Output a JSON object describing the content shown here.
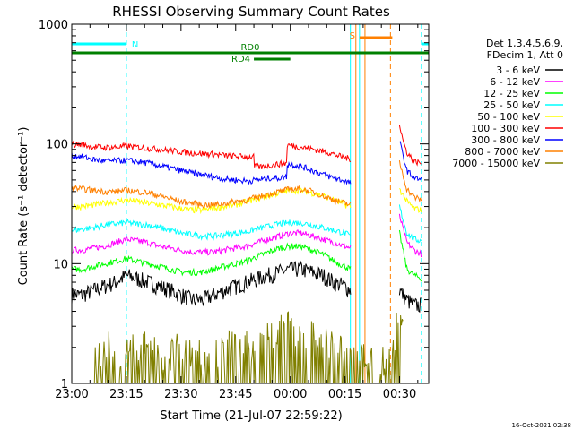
{
  "chart_data": {
    "type": "line",
    "title": "RHESSI Observing Summary Count Rates",
    "xlabel": "Start Time (21-Jul-07 22:59:22)",
    "ylabel": "Count Rate (s⁻¹ detector⁻¹)",
    "x_unit": "minutes from 21-Jul-07 23:00",
    "xlim": [
      0,
      98
    ],
    "ylim": [
      1,
      1000
    ],
    "yscale": "log",
    "grid": false,
    "legend_position": "right",
    "x_ticks": [
      {
        "x": 0,
        "label": "23:00"
      },
      {
        "x": 15,
        "label": "23:15"
      },
      {
        "x": 30,
        "label": "23:30"
      },
      {
        "x": 45,
        "label": "23:45"
      },
      {
        "x": 60,
        "label": "00:00"
      },
      {
        "x": 75,
        "label": "00:15"
      },
      {
        "x": 90,
        "label": "00:30"
      }
    ],
    "y_ticks": [
      {
        "y": 1,
        "label": "1"
      },
      {
        "y": 10,
        "label": "10"
      },
      {
        "y": 100,
        "label": "100"
      },
      {
        "y": 1000,
        "label": "1000"
      }
    ],
    "legend_header": [
      "Det 1,3,4,5,6,9,",
      "FDecim 1, Att 0"
    ],
    "series": [
      {
        "name": "3 - 6 keV",
        "color": "#000000",
        "x": [
          0,
          3,
          6,
          9,
          12,
          15,
          18,
          21,
          24,
          27,
          30,
          33,
          36,
          39,
          42,
          45,
          48,
          51,
          54,
          57,
          60,
          63,
          66,
          69,
          72,
          75,
          76.5,
          90,
          92,
          94,
          96
        ],
        "y": [
          5.5,
          5.5,
          6,
          6.5,
          7,
          8,
          7.5,
          7,
          6.5,
          6,
          5.5,
          5,
          5,
          5.5,
          6,
          6.5,
          7,
          7.5,
          8,
          8.5,
          9,
          9,
          8.5,
          8,
          7,
          6.5,
          6,
          6,
          5,
          4.5,
          4.5
        ]
      },
      {
        "name": "6 - 12 keV",
        "color": "#ff00ff",
        "x": [
          0,
          3,
          6,
          9,
          12,
          15,
          18,
          21,
          24,
          27,
          30,
          33,
          36,
          39,
          42,
          45,
          48,
          51,
          54,
          57,
          60,
          63,
          66,
          69,
          72,
          75,
          76.5,
          90,
          92,
          94,
          96
        ],
        "y": [
          13,
          13,
          13.5,
          14,
          15,
          16,
          15.5,
          15,
          14,
          13.5,
          13,
          12.5,
          12.5,
          12.5,
          13,
          13.5,
          14,
          15,
          16,
          17,
          18,
          18,
          17,
          16,
          15,
          14,
          13.5,
          25,
          15,
          13,
          12
        ]
      },
      {
        "name": "12 - 25 keV",
        "color": "#00ff00",
        "x": [
          0,
          3,
          6,
          9,
          12,
          15,
          18,
          21,
          24,
          27,
          30,
          33,
          36,
          39,
          42,
          45,
          48,
          51,
          54,
          57,
          60,
          63,
          66,
          69,
          72,
          75,
          76.5,
          90,
          92,
          94,
          96
        ],
        "y": [
          9,
          9,
          9.5,
          10,
          10.5,
          11,
          10.5,
          10,
          9.5,
          9,
          8.5,
          8.5,
          8.5,
          9,
          9.5,
          10,
          10.5,
          11.5,
          12.5,
          13.5,
          14,
          14,
          13,
          12,
          10.5,
          9.5,
          9,
          18,
          9,
          8,
          7.5
        ]
      },
      {
        "name": "25 - 50 keV",
        "color": "#00ffff",
        "x": [
          0,
          3,
          6,
          9,
          12,
          15,
          18,
          21,
          24,
          27,
          30,
          33,
          36,
          39,
          42,
          45,
          48,
          51,
          54,
          57,
          60,
          63,
          66,
          69,
          72,
          75,
          76.5,
          90,
          92,
          94,
          96
        ],
        "y": [
          19,
          19.5,
          20,
          21,
          21.5,
          22,
          21.5,
          21,
          20,
          19,
          18,
          17.5,
          17,
          17,
          17.5,
          18,
          18.5,
          19.5,
          20.5,
          21.5,
          22,
          22,
          21,
          20,
          19,
          18,
          17,
          30,
          18,
          16,
          15.5
        ]
      },
      {
        "name": "50 - 100 keV",
        "color": "#ffff00",
        "x": [
          0,
          3,
          6,
          9,
          12,
          15,
          18,
          21,
          24,
          27,
          30,
          33,
          36,
          39,
          42,
          45,
          48,
          51,
          54,
          57,
          60,
          63,
          66,
          69,
          72,
          75,
          76.5,
          90,
          92,
          94,
          96
        ],
        "y": [
          30,
          30,
          31,
          32,
          33,
          34,
          33,
          32,
          31,
          30,
          29,
          28,
          28,
          29,
          30,
          31,
          33,
          35,
          37,
          39,
          41,
          41,
          39,
          37,
          34,
          31,
          30,
          42,
          33,
          29,
          28
        ]
      },
      {
        "name": "100 - 300 keV",
        "color": "#ff0000",
        "x": [
          0,
          3,
          6,
          9,
          12,
          15,
          18,
          21,
          24,
          27,
          30,
          33,
          36,
          39,
          42,
          45,
          48,
          50,
          50.01,
          52,
          54,
          57,
          59,
          59.01,
          62,
          65,
          68,
          71,
          74,
          76.5,
          90,
          91,
          92,
          94,
          96
        ],
        "y": [
          100,
          98,
          95,
          93,
          94,
          96,
          94,
          92,
          90,
          88,
          86,
          84,
          83,
          82,
          80,
          79,
          78,
          78,
          65,
          64,
          66,
          68,
          69,
          98,
          95,
          92,
          88,
          84,
          78,
          75,
          145,
          105,
          85,
          72,
          69
        ]
      },
      {
        "name": "300 - 800 keV",
        "color": "#0000ff",
        "x": [
          0,
          3,
          6,
          9,
          12,
          15,
          18,
          21,
          24,
          27,
          30,
          33,
          36,
          39,
          42,
          45,
          48,
          51,
          54,
          57,
          59,
          59.01,
          62,
          65,
          68,
          71,
          74,
          76.5,
          90,
          92,
          94,
          96
        ],
        "y": [
          80,
          78,
          74,
          72,
          72,
          73,
          71,
          69,
          66,
          63,
          60,
          57,
          55,
          53,
          51,
          50,
          49,
          50,
          52,
          52,
          53,
          68,
          66,
          62,
          57,
          53,
          50,
          47,
          105,
          60,
          52,
          50
        ]
      },
      {
        "name": "800 - 7000 keV",
        "color": "#ff8000",
        "x": [
          0,
          3,
          6,
          9,
          12,
          15,
          18,
          21,
          24,
          27,
          30,
          33,
          36,
          39,
          42,
          45,
          48,
          51,
          54,
          57,
          60,
          63,
          66,
          69,
          72,
          75,
          76.5,
          90,
          92,
          94,
          96
        ],
        "y": [
          43,
          42,
          41,
          40,
          40,
          41,
          40,
          39,
          37,
          35,
          33,
          32,
          31,
          31,
          32,
          33,
          34,
          36,
          38,
          40,
          42,
          42,
          40,
          37,
          34,
          32,
          31,
          70,
          42,
          36,
          34
        ]
      },
      {
        "name": "7000 - 15000 keV",
        "color": "#808000",
        "x": [
          6,
          8,
          10,
          12,
          14,
          16,
          18,
          20,
          22,
          24,
          26,
          28,
          30,
          32,
          34,
          36,
          38,
          40,
          42,
          44,
          46,
          48,
          50,
          52,
          54,
          56,
          58,
          60,
          62,
          64,
          66,
          68,
          70,
          72,
          74,
          88,
          89,
          90,
          91
        ],
        "y": [
          2,
          1.6,
          2.4,
          1.8,
          2,
          2.6,
          1.7,
          2.2,
          1.9,
          2.1,
          1.6,
          2,
          2.4,
          1.8,
          2,
          1.7,
          2.3,
          1.9,
          2,
          2.2,
          1.8,
          2.1,
          2,
          2.4,
          2.8,
          2.2,
          3.4,
          3,
          2.5,
          2.2,
          2.6,
          2,
          2.4,
          2.1,
          1.9,
          1.5,
          3,
          4,
          2.5
        ]
      }
    ],
    "bar_annotations": [
      {
        "label": "N",
        "color": "#00ffff",
        "x_start": 0,
        "x_end": 98,
        "gap": [
          15,
          96
        ],
        "level": 1
      },
      {
        "label": "RD0",
        "color": "#008000",
        "x_start": 0,
        "x_end": 98,
        "level": 2
      },
      {
        "label": "RD4",
        "color": "#008000",
        "x_start": 50,
        "x_end": 60,
        "level": 3
      },
      {
        "label": "S",
        "color": "#ff8000",
        "x_start": 79,
        "x_end": 88,
        "level": 0
      }
    ],
    "vertical_lines": [
      {
        "x": 0,
        "color": "#00ffff",
        "style": "solid"
      },
      {
        "x": 15,
        "color": "#00ffff",
        "style": "dashed"
      },
      {
        "x": 76.5,
        "color": "#00ffff",
        "style": "solid"
      },
      {
        "x": 79,
        "color": "#00ffff",
        "style": "solid"
      },
      {
        "x": 78,
        "color": "#ff8000",
        "style": "solid"
      },
      {
        "x": 80.5,
        "color": "#ff8000",
        "style": "solid"
      },
      {
        "x": 87.5,
        "color": "#ff8000",
        "style": "dashed"
      },
      {
        "x": 96,
        "color": "#00ffff",
        "style": "dashed"
      }
    ]
  },
  "footer": {
    "timestamp": "16-Oct-2021 02:38"
  }
}
